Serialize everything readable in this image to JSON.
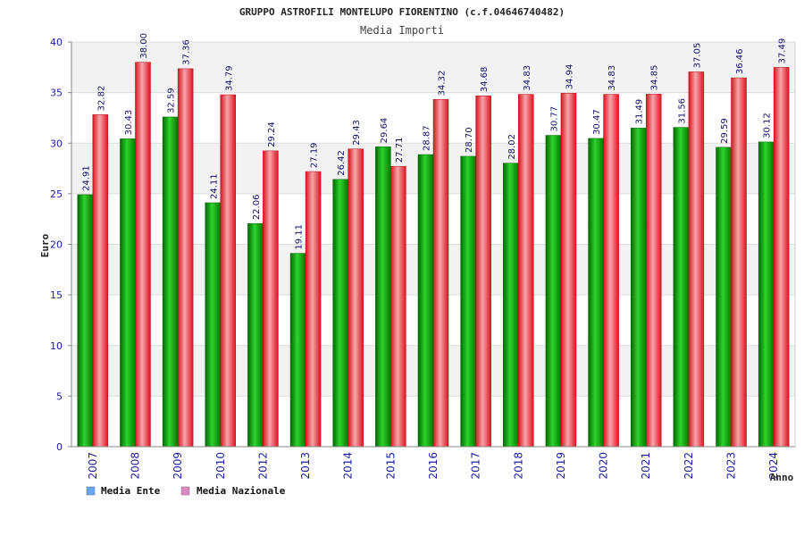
{
  "chart_data": {
    "type": "bar",
    "title": "GRUPPO ASTROFILI MONTELUPO FIORENTINO (c.f.04646740482)",
    "subtitle": "Media Importi",
    "xlabel": "Anno",
    "ylabel": "Euro",
    "ylim": [
      0,
      40
    ],
    "yticks": [
      "0",
      "5",
      "10",
      "15",
      "20",
      "25",
      "30",
      "35",
      "40"
    ],
    "grid": true,
    "legend_position": "bottom-left",
    "categories": [
      "2007",
      "2008",
      "2009",
      "2010",
      "2012",
      "2013",
      "2014",
      "2015",
      "2016",
      "2017",
      "2018",
      "2019",
      "2020",
      "2021",
      "2022",
      "2023",
      "2024"
    ],
    "series": [
      {
        "name": "Media Ente",
        "color": "#00a000",
        "legend_color": "#6aa6e8",
        "values": [
          24.91,
          30.43,
          32.59,
          24.11,
          22.06,
          19.11,
          26.42,
          29.64,
          28.87,
          28.7,
          28.02,
          30.77,
          30.47,
          31.49,
          31.56,
          29.59,
          30.12
        ],
        "labels": [
          "24.91",
          "30.43",
          "32.59",
          "24.11",
          "22.06",
          "19.11",
          "26.42",
          "29.64",
          "28.87",
          "28.70",
          "28.02",
          "30.77",
          "30.47",
          "31.49",
          "31.56",
          "29.59",
          "30.12"
        ]
      },
      {
        "name": "Media Nazionale",
        "color": "#e8192c",
        "legend_color": "#d98cc0",
        "values": [
          32.82,
          38.0,
          37.36,
          34.79,
          29.24,
          27.19,
          29.43,
          27.71,
          34.32,
          34.68,
          34.83,
          34.94,
          34.83,
          34.85,
          37.05,
          36.46,
          37.49
        ],
        "labels": [
          "32.82",
          "38.00",
          "37.36",
          "34.79",
          "29.24",
          "27.19",
          "29.43",
          "27.71",
          "34.32",
          "34.68",
          "34.83",
          "34.94",
          "34.83",
          "34.85",
          "37.05",
          "36.46",
          "37.49"
        ]
      }
    ]
  }
}
